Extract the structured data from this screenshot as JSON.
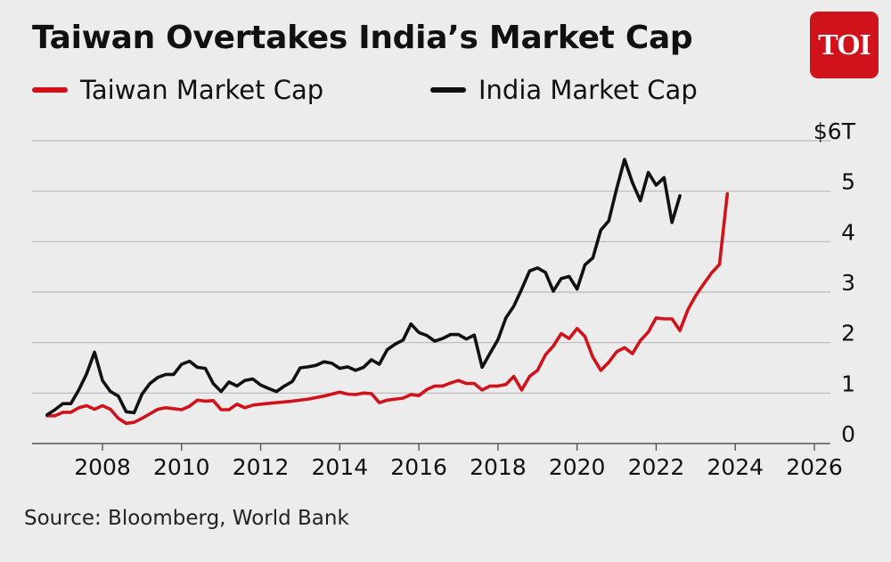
{
  "header": {
    "title": "Taiwan Overtakes India’s Market Cap"
  },
  "logo": {
    "text": "TOI",
    "color": "#d0121b"
  },
  "source": "Source: Bloomberg, World Bank",
  "chart_data": {
    "type": "line",
    "title": "Taiwan Overtakes India’s Market Cap",
    "xlabel": "",
    "ylabel": "",
    "xlim": [
      2006.6,
      2026.8
    ],
    "ylim": [
      0,
      6
    ],
    "x_ticks": [
      2008,
      2010,
      2012,
      2014,
      2016,
      2018,
      2020,
      2022,
      2024,
      2026
    ],
    "x_tick_labels": [
      "2008",
      "2010",
      "2012",
      "2014",
      "2016",
      "2018",
      "2020",
      "2022",
      "2024",
      "2026"
    ],
    "y_ticks": [
      0,
      1,
      2,
      3,
      4,
      5,
      6
    ],
    "y_tick_labels": [
      "0",
      "1",
      "2",
      "3",
      "4",
      "5",
      "$6T"
    ],
    "grid": "horizontal",
    "legend_position": "top",
    "series": [
      {
        "name": "Taiwan Market Cap",
        "color": "#d0121b",
        "points": [
          [
            2006.6,
            0.55
          ],
          [
            2006.8,
            0.55
          ],
          [
            2007.0,
            0.62
          ],
          [
            2007.2,
            0.62
          ],
          [
            2007.4,
            0.71
          ],
          [
            2007.6,
            0.75
          ],
          [
            2007.8,
            0.68
          ],
          [
            2008.0,
            0.75
          ],
          [
            2008.2,
            0.68
          ],
          [
            2008.4,
            0.5
          ],
          [
            2008.6,
            0.4
          ],
          [
            2008.8,
            0.42
          ],
          [
            2009.0,
            0.5
          ],
          [
            2009.2,
            0.59
          ],
          [
            2009.4,
            0.68
          ],
          [
            2009.6,
            0.71
          ],
          [
            2009.8,
            0.69
          ],
          [
            2010.0,
            0.67
          ],
          [
            2010.2,
            0.74
          ],
          [
            2010.4,
            0.86
          ],
          [
            2010.6,
            0.84
          ],
          [
            2010.8,
            0.85
          ],
          [
            2011.0,
            0.67
          ],
          [
            2011.2,
            0.67
          ],
          [
            2011.4,
            0.78
          ],
          [
            2011.6,
            0.71
          ],
          [
            2011.8,
            0.76
          ],
          [
            2012.0,
            0.78
          ],
          [
            2012.4,
            0.81
          ],
          [
            2012.8,
            0.84
          ],
          [
            2013.2,
            0.88
          ],
          [
            2013.6,
            0.94
          ],
          [
            2014.0,
            1.02
          ],
          [
            2014.2,
            0.98
          ],
          [
            2014.4,
            0.97
          ],
          [
            2014.6,
            1.0
          ],
          [
            2014.8,
            0.99
          ],
          [
            2015.0,
            0.81
          ],
          [
            2015.2,
            0.86
          ],
          [
            2015.4,
            0.88
          ],
          [
            2015.6,
            0.9
          ],
          [
            2015.8,
            0.97
          ],
          [
            2016.0,
            0.95
          ],
          [
            2016.2,
            1.07
          ],
          [
            2016.4,
            1.14
          ],
          [
            2016.6,
            1.14
          ],
          [
            2016.8,
            1.2
          ],
          [
            2017.0,
            1.25
          ],
          [
            2017.2,
            1.19
          ],
          [
            2017.4,
            1.19
          ],
          [
            2017.6,
            1.06
          ],
          [
            2017.8,
            1.14
          ],
          [
            2018.0,
            1.14
          ],
          [
            2018.2,
            1.17
          ],
          [
            2018.4,
            1.33
          ],
          [
            2018.6,
            1.06
          ],
          [
            2018.8,
            1.33
          ],
          [
            2019.0,
            1.45
          ],
          [
            2019.2,
            1.76
          ],
          [
            2019.4,
            1.93
          ],
          [
            2019.6,
            2.18
          ],
          [
            2019.8,
            2.08
          ],
          [
            2020.0,
            2.28
          ],
          [
            2020.2,
            2.12
          ],
          [
            2020.4,
            1.71
          ],
          [
            2020.6,
            1.45
          ],
          [
            2020.8,
            1.61
          ],
          [
            2021.0,
            1.82
          ],
          [
            2021.2,
            1.9
          ],
          [
            2021.4,
            1.78
          ],
          [
            2021.6,
            2.04
          ],
          [
            2021.8,
            2.21
          ],
          [
            2022.0,
            2.49
          ],
          [
            2022.2,
            2.47
          ],
          [
            2022.4,
            2.47
          ],
          [
            2022.6,
            2.24
          ],
          [
            2022.8,
            2.65
          ],
          [
            2023.0,
            2.93
          ],
          [
            2023.2,
            3.16
          ],
          [
            2023.4,
            3.38
          ],
          [
            2023.6,
            3.55
          ],
          [
            2023.8,
            4.95
          ]
        ]
      },
      {
        "name": "India Market Cap",
        "color": "#111111",
        "points": [
          [
            2006.6,
            0.57
          ],
          [
            2006.8,
            0.67
          ],
          [
            2007.0,
            0.79
          ],
          [
            2007.2,
            0.79
          ],
          [
            2007.4,
            1.06
          ],
          [
            2007.6,
            1.38
          ],
          [
            2007.8,
            1.81
          ],
          [
            2008.0,
            1.25
          ],
          [
            2008.2,
            1.03
          ],
          [
            2008.4,
            0.94
          ],
          [
            2008.6,
            0.63
          ],
          [
            2008.8,
            0.61
          ],
          [
            2009.0,
            0.98
          ],
          [
            2009.2,
            1.19
          ],
          [
            2009.4,
            1.31
          ],
          [
            2009.6,
            1.37
          ],
          [
            2009.8,
            1.37
          ],
          [
            2010.0,
            1.57
          ],
          [
            2010.2,
            1.63
          ],
          [
            2010.4,
            1.51
          ],
          [
            2010.6,
            1.49
          ],
          [
            2010.8,
            1.19
          ],
          [
            2011.0,
            1.03
          ],
          [
            2011.2,
            1.22
          ],
          [
            2011.4,
            1.14
          ],
          [
            2011.6,
            1.25
          ],
          [
            2011.8,
            1.28
          ],
          [
            2012.0,
            1.16
          ],
          [
            2012.2,
            1.09
          ],
          [
            2012.4,
            1.03
          ],
          [
            2012.6,
            1.14
          ],
          [
            2012.8,
            1.23
          ],
          [
            2013.0,
            1.5
          ],
          [
            2013.2,
            1.52
          ],
          [
            2013.4,
            1.55
          ],
          [
            2013.6,
            1.62
          ],
          [
            2013.8,
            1.59
          ],
          [
            2014.0,
            1.49
          ],
          [
            2014.2,
            1.52
          ],
          [
            2014.4,
            1.45
          ],
          [
            2014.6,
            1.51
          ],
          [
            2014.8,
            1.66
          ],
          [
            2015.0,
            1.57
          ],
          [
            2015.2,
            1.86
          ],
          [
            2015.4,
            1.97
          ],
          [
            2015.6,
            2.05
          ],
          [
            2015.8,
            2.37
          ],
          [
            2016.0,
            2.2
          ],
          [
            2016.2,
            2.14
          ],
          [
            2016.4,
            2.03
          ],
          [
            2016.6,
            2.08
          ],
          [
            2016.8,
            2.16
          ],
          [
            2017.0,
            2.16
          ],
          [
            2017.2,
            2.07
          ],
          [
            2017.4,
            2.15
          ],
          [
            2017.6,
            1.51
          ],
          [
            2017.8,
            1.79
          ],
          [
            2018.0,
            2.06
          ],
          [
            2018.2,
            2.49
          ],
          [
            2018.4,
            2.72
          ],
          [
            2018.6,
            3.06
          ],
          [
            2018.8,
            3.42
          ],
          [
            2019.0,
            3.48
          ],
          [
            2019.2,
            3.39
          ],
          [
            2019.4,
            3.02
          ],
          [
            2019.6,
            3.27
          ],
          [
            2019.8,
            3.31
          ],
          [
            2020.0,
            3.06
          ],
          [
            2020.2,
            3.54
          ],
          [
            2020.4,
            3.68
          ],
          [
            2020.6,
            4.23
          ],
          [
            2020.8,
            4.41
          ],
          [
            2021.0,
            5.05
          ],
          [
            2021.2,
            5.63
          ],
          [
            2021.4,
            5.17
          ],
          [
            2021.6,
            4.81
          ],
          [
            2021.8,
            5.37
          ],
          [
            2022.0,
            5.12
          ],
          [
            2022.2,
            5.27
          ],
          [
            2022.4,
            4.38
          ],
          [
            2022.6,
            4.91
          ]
        ]
      }
    ]
  }
}
